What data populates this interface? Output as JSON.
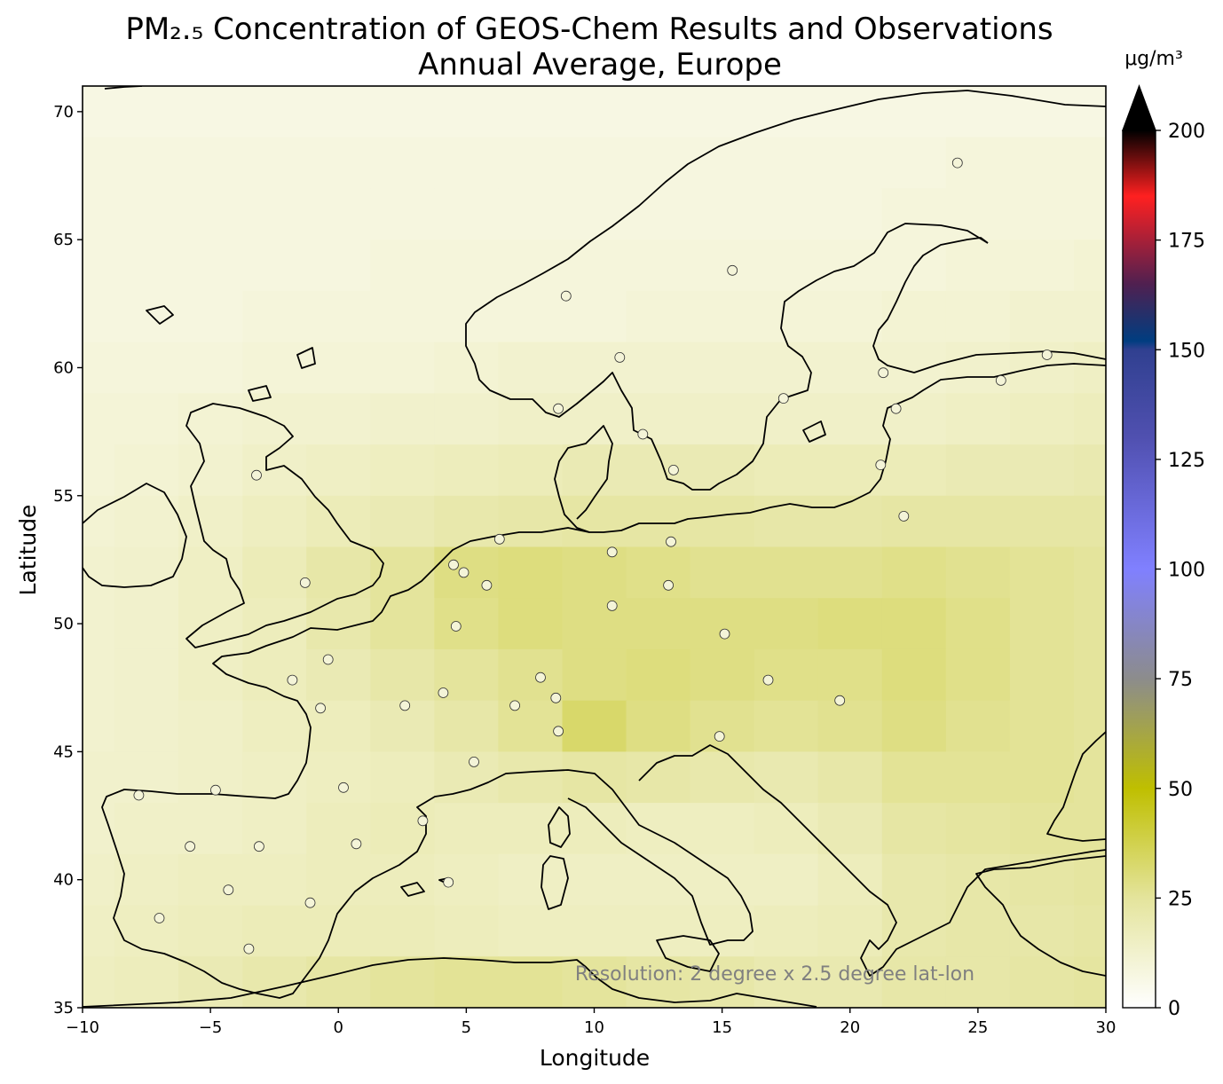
{
  "title_line1": "PM₂.₅ Concentration of GEOS-Chem Results and Observations",
  "title_line2": "Annual Average, Europe",
  "xlabel": "Longitude",
  "ylabel": "Latitude",
  "colorbar_unit": "μg/m³",
  "annotation": "Resolution: 2 degree x 2.5 degree lat-lon",
  "chart_data": {
    "type": "heatmap",
    "title": "PM₂.₅ Concentration of GEOS-Chem Results and Observations\nAnnual Average, Europe",
    "xlabel": "Longitude",
    "ylabel": "Latitude",
    "xlim": [
      -10,
      30
    ],
    "ylim": [
      35,
      71
    ],
    "xticks": [
      -10,
      -5,
      0,
      5,
      10,
      15,
      20,
      25,
      30
    ],
    "xtick_labels": [
      "−10",
      "−5",
      "0",
      "5",
      "10",
      "15",
      "20",
      "25",
      "30"
    ],
    "yticks": [
      35,
      40,
      45,
      50,
      55,
      60,
      65,
      70
    ],
    "ytick_labels": [
      "35",
      "40",
      "45",
      "50",
      "55",
      "60",
      "65",
      "70"
    ],
    "colorbar": {
      "unit": "μg/m³",
      "range": [
        0,
        200
      ],
      "extend": "max",
      "ticks": [
        0,
        25,
        50,
        75,
        100,
        125,
        150,
        175,
        200
      ],
      "stops": [
        {
          "v": 0,
          "c": "#ffffff"
        },
        {
          "v": 25,
          "c": "#e4e49c"
        },
        {
          "v": 50,
          "c": "#bfbf00"
        },
        {
          "v": 75,
          "c": "#8c8c8c"
        },
        {
          "v": 100,
          "c": "#8080ff"
        },
        {
          "v": 130,
          "c": "#5050b0"
        },
        {
          "v": 150,
          "c": "#304090"
        },
        {
          "v": 152,
          "c": "#003d80"
        },
        {
          "v": 165,
          "c": "#502050"
        },
        {
          "v": 185,
          "c": "#ff2020"
        },
        {
          "v": 200,
          "c": "#000000"
        }
      ]
    },
    "grid": {
      "lon_step": 2.5,
      "lat_step": 2,
      "lon_start": -11.25,
      "lat_start": 33,
      "rows": [
        {
          "lat": 70,
          "values": [
            7,
            7,
            7,
            7,
            7,
            7,
            7,
            7,
            7,
            7,
            7,
            7,
            7,
            7,
            7,
            7,
            7,
            7
          ]
        },
        {
          "lat": 68,
          "values": [
            8,
            8,
            8,
            8,
            8,
            8,
            8,
            8,
            8,
            8,
            8,
            8,
            8,
            8,
            9,
            9,
            9,
            9
          ]
        },
        {
          "lat": 66,
          "values": [
            8,
            8,
            8,
            8,
            8,
            8,
            8,
            8,
            8,
            8,
            8,
            8,
            8,
            9,
            9,
            9,
            9,
            9
          ]
        },
        {
          "lat": 64,
          "values": [
            8,
            8,
            8,
            8,
            8,
            9,
            9,
            9,
            9,
            9,
            9,
            9,
            9,
            9,
            10,
            10,
            11,
            11
          ]
        },
        {
          "lat": 62,
          "values": [
            8,
            8,
            8,
            9,
            9,
            9,
            9,
            9,
            9,
            10,
            10,
            10,
            10,
            11,
            11,
            12,
            12,
            13
          ]
        },
        {
          "lat": 60,
          "values": [
            9,
            9,
            9,
            10,
            10,
            10,
            11,
            12,
            12,
            12,
            12,
            12,
            12,
            12,
            13,
            14,
            15,
            17
          ]
        },
        {
          "lat": 58,
          "values": [
            10,
            10,
            11,
            12,
            12,
            13,
            13,
            14,
            14,
            14,
            14,
            14,
            14,
            14,
            15,
            16,
            17,
            18
          ]
        },
        {
          "lat": 56,
          "values": [
            10,
            11,
            12,
            14,
            15,
            16,
            17,
            18,
            19,
            19,
            19,
            18,
            18,
            18,
            19,
            19,
            20,
            21
          ]
        },
        {
          "lat": 54,
          "values": [
            11,
            12,
            14,
            16,
            18,
            19,
            21,
            22,
            23,
            23,
            23,
            22,
            22,
            23,
            23,
            23,
            23,
            23
          ]
        },
        {
          "lat": 52,
          "values": [
            12,
            13,
            15,
            18,
            22,
            25,
            29,
            30,
            29,
            28,
            27,
            27,
            27,
            28,
            27,
            26,
            25,
            24
          ]
        },
        {
          "lat": 50,
          "values": [
            12,
            13,
            15,
            17,
            21,
            25,
            28,
            30,
            29,
            29,
            29,
            29,
            30,
            30,
            28,
            26,
            25,
            24
          ]
        },
        {
          "lat": 48,
          "values": [
            12,
            13,
            15,
            17,
            19,
            22,
            25,
            27,
            29,
            30,
            29,
            28,
            28,
            30,
            28,
            26,
            25,
            24
          ]
        },
        {
          "lat": 46,
          "values": [
            12,
            13,
            14,
            16,
            17,
            19,
            22,
            26,
            33,
            29,
            27,
            26,
            27,
            29,
            27,
            26,
            25,
            24
          ]
        },
        {
          "lat": 44,
          "values": [
            13,
            13,
            14,
            15,
            16,
            17,
            19,
            21,
            23,
            22,
            21,
            20,
            22,
            26,
            26,
            26,
            25,
            24
          ]
        },
        {
          "lat": 42,
          "values": [
            13,
            14,
            14,
            15,
            17,
            18,
            17,
            17,
            17,
            16,
            16,
            17,
            19,
            23,
            24,
            25,
            25,
            25
          ]
        },
        {
          "lat": 40,
          "values": [
            14,
            15,
            16,
            16,
            17,
            17,
            16,
            15,
            15,
            15,
            15,
            15,
            17,
            21,
            22,
            23,
            24,
            25
          ]
        },
        {
          "lat": 38,
          "values": [
            15,
            16,
            17,
            18,
            18,
            18,
            17,
            16,
            16,
            16,
            16,
            17,
            18,
            21,
            22,
            22,
            23,
            26
          ]
        },
        {
          "lat": 36,
          "values": [
            16,
            17,
            19,
            21,
            23,
            25,
            26,
            26,
            25,
            23,
            22,
            20,
            20,
            22,
            22,
            23,
            24,
            25
          ]
        },
        {
          "lat": 34,
          "values": [
            18,
            19,
            21,
            23,
            25,
            27,
            28,
            28,
            27,
            25,
            23,
            21,
            20,
            21,
            22,
            23,
            24,
            25
          ]
        }
      ]
    },
    "observation_sites": [
      {
        "lon": -7.8,
        "lat": 43.3
      },
      {
        "lon": -5.8,
        "lat": 41.3
      },
      {
        "lon": -7.0,
        "lat": 38.5
      },
      {
        "lon": -4.8,
        "lat": 43.5
      },
      {
        "lon": -4.3,
        "lat": 39.6
      },
      {
        "lon": -3.1,
        "lat": 41.3
      },
      {
        "lon": -3.5,
        "lat": 37.3
      },
      {
        "lon": -1.1,
        "lat": 39.1
      },
      {
        "lon": 0.7,
        "lat": 41.4
      },
      {
        "lon": 0.2,
        "lat": 43.6
      },
      {
        "lon": -0.7,
        "lat": 46.7
      },
      {
        "lon": -1.8,
        "lat": 47.8
      },
      {
        "lon": -0.4,
        "lat": 48.6
      },
      {
        "lon": -1.3,
        "lat": 51.6
      },
      {
        "lon": -3.2,
        "lat": 55.8
      },
      {
        "lon": 2.6,
        "lat": 46.8
      },
      {
        "lon": 4.1,
        "lat": 47.3
      },
      {
        "lon": 4.6,
        "lat": 49.9
      },
      {
        "lon": 4.5,
        "lat": 52.3
      },
      {
        "lon": 4.9,
        "lat": 52.0
      },
      {
        "lon": 5.8,
        "lat": 51.5
      },
      {
        "lon": 6.3,
        "lat": 53.3
      },
      {
        "lon": 5.3,
        "lat": 44.6
      },
      {
        "lon": 3.3,
        "lat": 42.3
      },
      {
        "lon": 4.3,
        "lat": 39.9
      },
      {
        "lon": 6.9,
        "lat": 46.8
      },
      {
        "lon": 7.9,
        "lat": 47.9
      },
      {
        "lon": 8.5,
        "lat": 47.1
      },
      {
        "lon": 8.6,
        "lat": 45.8
      },
      {
        "lon": 10.7,
        "lat": 50.7
      },
      {
        "lon": 10.7,
        "lat": 52.8
      },
      {
        "lon": 12.9,
        "lat": 51.5
      },
      {
        "lon": 13.0,
        "lat": 53.2
      },
      {
        "lon": 13.1,
        "lat": 56.0
      },
      {
        "lon": 11.9,
        "lat": 57.4
      },
      {
        "lon": 8.6,
        "lat": 58.4
      },
      {
        "lon": 11.0,
        "lat": 60.4
      },
      {
        "lon": 8.9,
        "lat": 62.8
      },
      {
        "lon": 15.4,
        "lat": 63.8
      },
      {
        "lon": 24.2,
        "lat": 68.0
      },
      {
        "lon": 17.4,
        "lat": 58.8
      },
      {
        "lon": 21.3,
        "lat": 59.8
      },
      {
        "lon": 21.8,
        "lat": 58.4
      },
      {
        "lon": 21.2,
        "lat": 56.2
      },
      {
        "lon": 22.1,
        "lat": 54.2
      },
      {
        "lon": 25.9,
        "lat": 59.5
      },
      {
        "lon": 27.7,
        "lat": 60.5
      },
      {
        "lon": 15.1,
        "lat": 49.6
      },
      {
        "lon": 16.8,
        "lat": 47.8
      },
      {
        "lon": 19.6,
        "lat": 47.0
      },
      {
        "lon": 14.9,
        "lat": 45.6
      }
    ]
  }
}
